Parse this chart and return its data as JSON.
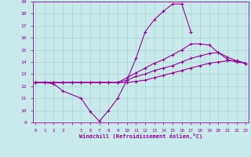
{
  "title": "",
  "xlabel": "Windchill (Refroidissement éolien,°C)",
  "ylabel": "",
  "bg_color": "#c8eaea",
  "line_color": "#990099",
  "grid_color": "#aad4d4",
  "xmin": 0,
  "xmax": 23,
  "ymin": 9,
  "ymax": 19,
  "hours": [
    0,
    1,
    2,
    3,
    4,
    5,
    6,
    7,
    8,
    9,
    10,
    11,
    12,
    13,
    14,
    15,
    16,
    17,
    18,
    19,
    20,
    21,
    22,
    23
  ],
  "line1": [
    12.3,
    12.3,
    12.2,
    11.6,
    null,
    11.0,
    9.9,
    9.1,
    10.0,
    11.0,
    12.5,
    14.3,
    16.5,
    17.5,
    18.2,
    18.8,
    18.8,
    16.5,
    null,
    null,
    null,
    null,
    null,
    null
  ],
  "line2": [
    12.3,
    12.3,
    12.3,
    12.3,
    12.3,
    12.3,
    12.3,
    12.3,
    12.3,
    12.3,
    12.7,
    13.1,
    13.5,
    13.9,
    14.2,
    14.6,
    15.0,
    15.5,
    15.5,
    15.4,
    14.8,
    14.2,
    14.0,
    13.9
  ],
  "line3": [
    12.3,
    12.3,
    12.3,
    12.3,
    12.3,
    12.3,
    12.3,
    12.3,
    12.3,
    12.3,
    12.5,
    12.8,
    13.0,
    13.3,
    13.5,
    13.7,
    14.0,
    14.3,
    14.5,
    14.7,
    14.8,
    14.4,
    14.1,
    13.9
  ],
  "line4": [
    12.3,
    12.3,
    12.3,
    12.3,
    12.3,
    12.3,
    12.3,
    12.3,
    12.3,
    12.3,
    12.3,
    12.4,
    12.5,
    12.7,
    12.9,
    13.1,
    13.3,
    13.5,
    13.7,
    13.9,
    14.0,
    14.1,
    14.1,
    13.9
  ],
  "xtick_labels": [
    "0",
    "1",
    "2",
    "3",
    "",
    "5",
    "6",
    "7",
    "8",
    "9",
    "10",
    "11",
    "12",
    "13",
    "14",
    "15",
    "16",
    "17",
    "18",
    "19",
    "20",
    "21",
    "2223",
    ""
  ],
  "xlim_min": -0.3,
  "xlim_max": 23.3
}
